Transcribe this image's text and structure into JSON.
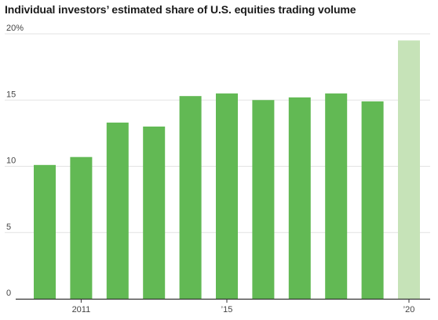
{
  "chart_data": {
    "type": "bar",
    "title": "Individual investors’ estimated share of U.S. equities trading volume",
    "xlabel": "",
    "ylabel": "",
    "ylim": [
      0,
      20
    ],
    "y_ticks": [
      {
        "value": 0,
        "label": "0"
      },
      {
        "value": 5,
        "label": "5"
      },
      {
        "value": 10,
        "label": "10"
      },
      {
        "value": 15,
        "label": "15"
      },
      {
        "value": 20,
        "label": "20%"
      }
    ],
    "categories": [
      "2010",
      "2011",
      "2012",
      "2013",
      "2014",
      "2015",
      "2016",
      "2017",
      "2018",
      "2019",
      "2020"
    ],
    "values": [
      10.1,
      10.7,
      13.3,
      13.0,
      15.3,
      15.5,
      15.0,
      15.2,
      15.5,
      14.9,
      19.5
    ],
    "x_tick_labels": [
      {
        "category": "2011",
        "label": "2011"
      },
      {
        "category": "2015",
        "label": "’15"
      },
      {
        "category": "2020",
        "label": "’20"
      }
    ],
    "colors": {
      "bar": "#62b954",
      "bar_highlight": "#c6e3b8",
      "grid": "#e3e3e3",
      "axis": "#333333"
    },
    "highlight_category": "2020",
    "grid": true,
    "legend": "none"
  }
}
